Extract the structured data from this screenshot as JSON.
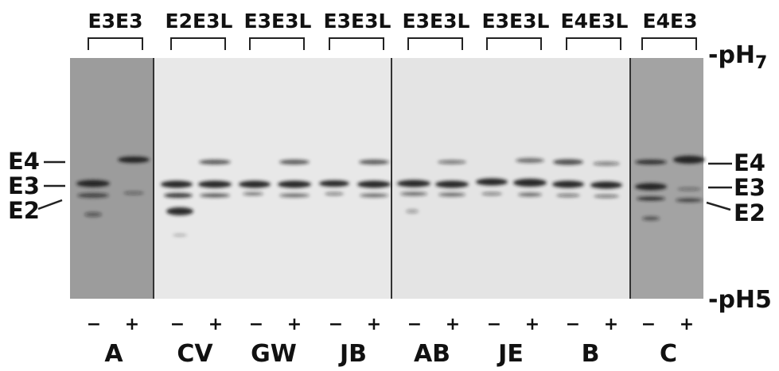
{
  "group_labels": [
    "E3E3",
    "E2E3L",
    "E3E3L",
    "E3E3L",
    "E3E3L",
    "E3E3L",
    "E4E3L",
    "E4E3"
  ],
  "sample_labels": [
    "A",
    "CV",
    "GW",
    "JB",
    "AB",
    "JE",
    "B",
    "C"
  ],
  "lane_signs": [
    "−",
    "+"
  ],
  "left_markers": [
    "E4",
    "E3",
    "E2"
  ],
  "right_markers": [
    "E4",
    "E3",
    "E2"
  ],
  "ph_top": {
    "text": "pH",
    "sub": "7"
  },
  "ph_bottom": {
    "text": "pH5"
  },
  "colors": {
    "gel_dark": "#9a9a9a",
    "gel_light": "#e6e6e6",
    "band": "#1a1a1a"
  }
}
